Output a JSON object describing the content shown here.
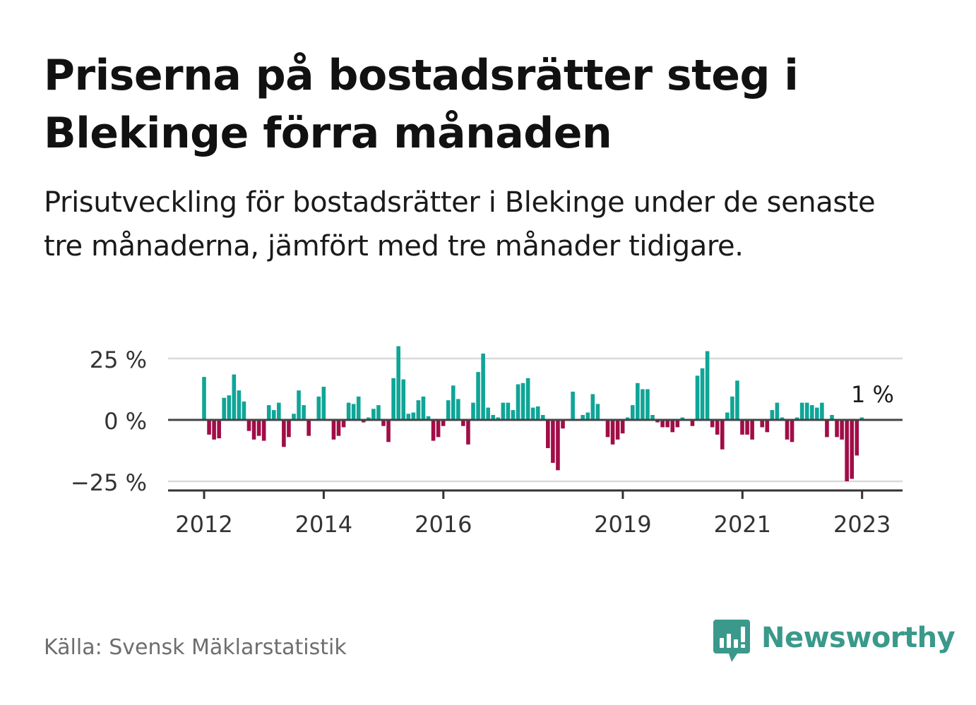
{
  "title": "Priserna på bostadsrätter steg i Blekinge förra månaden",
  "subtitle": "Prisutveckling för bostadsrätter i Blekinge under de senaste tre månaderna, jämfört med tre månader tidigare.",
  "source": "Källa: Svensk Mäklarstatistik",
  "brand": "Newsworthy",
  "colors": {
    "positive": "#0fa597",
    "negative": "#a10d47",
    "brand": "#3a998a",
    "grid": "#d9d9d9",
    "axis": "#444444"
  },
  "chart_data": {
    "type": "bar",
    "ylim": [
      -30,
      35
    ],
    "y_ticks": [
      25,
      0,
      -25
    ],
    "y_tick_labels": [
      "25 %",
      "0 %",
      "−25 %"
    ],
    "x_start": 2012.0,
    "x_step": 0.0833,
    "x_ticks": [
      {
        "value": 2012,
        "label": "2012"
      },
      {
        "value": 2014,
        "label": "2014"
      },
      {
        "value": 2016,
        "label": "2016"
      },
      {
        "value": 2019,
        "label": "2019"
      },
      {
        "value": 2021,
        "label": "2021"
      },
      {
        "value": 2023,
        "label": "2023"
      }
    ],
    "grid": true,
    "annotation": {
      "label": "1 %",
      "x": 2023.08,
      "value": 1
    },
    "values": [
      17.5,
      -6,
      -8,
      -7.5,
      9,
      10,
      18.5,
      12,
      7.5,
      -4.5,
      -8,
      -6.5,
      -8.5,
      6,
      4,
      7,
      -11,
      -7,
      2.5,
      12,
      6,
      -6.5,
      0,
      9.5,
      13.5,
      0,
      -8,
      -6.5,
      -3,
      7,
      6.5,
      9.5,
      -1,
      1,
      4.5,
      6,
      -2.5,
      -9,
      17,
      30,
      16.5,
      2.5,
      3,
      8,
      9.5,
      1.5,
      -8.5,
      -7,
      -2.5,
      8,
      14,
      8.5,
      -2.5,
      -10,
      7,
      19.5,
      27,
      5,
      2,
      1,
      7,
      7,
      4,
      14.5,
      15,
      17,
      5,
      5.5,
      2,
      -11.5,
      -17.5,
      -20.5,
      -3.5,
      0,
      11.5,
      0,
      2,
      3,
      10.5,
      6.5,
      0,
      -7,
      -10,
      -8,
      -5.5,
      1,
      6,
      15,
      12.5,
      12.5,
      2,
      -1,
      -3,
      -3,
      -5,
      -3,
      1,
      0,
      -2.5,
      18,
      21,
      28,
      -3,
      -6,
      -12,
      3,
      9.5,
      16,
      -6,
      -6,
      -8,
      0,
      -3,
      -5,
      4,
      7,
      1,
      -8,
      -9,
      1,
      7,
      7,
      6,
      5,
      7,
      -7,
      2,
      -7,
      -8,
      -25,
      -24,
      -14.5,
      1
    ]
  }
}
